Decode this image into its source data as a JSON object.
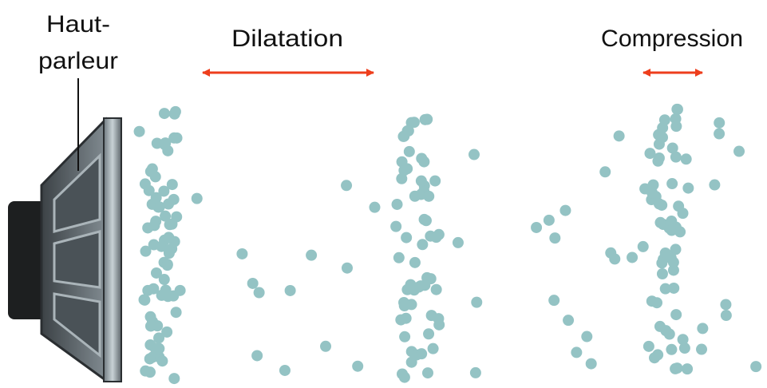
{
  "speaker_label": [
    "Haut-",
    "parleur"
  ],
  "dilatation_label": "Dilatation",
  "compression_label": "Compression"
}
